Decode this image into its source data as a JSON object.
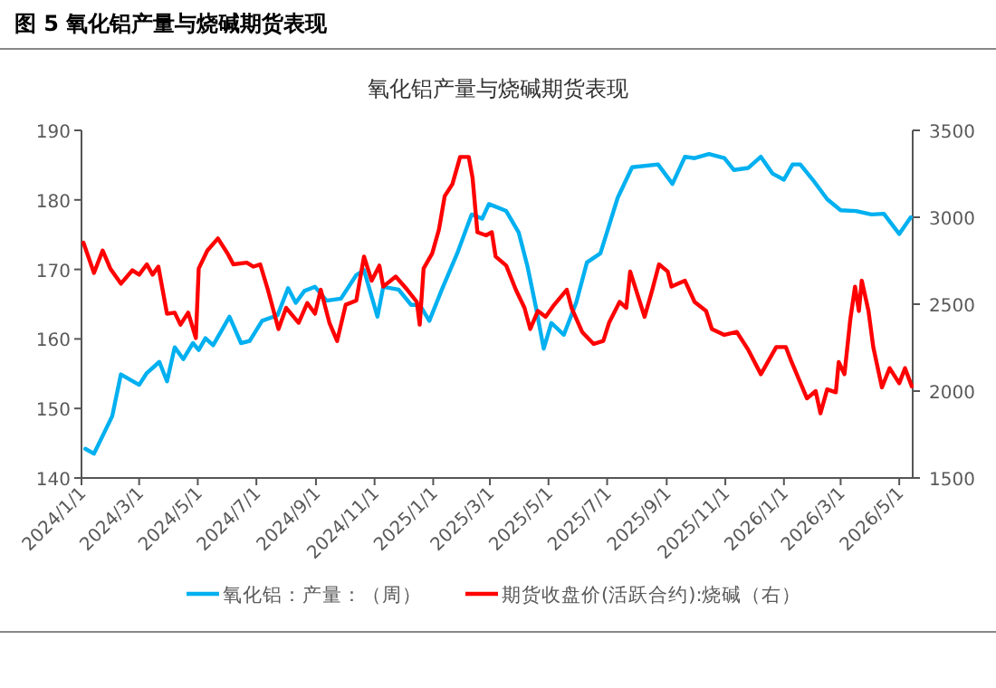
{
  "chart_data": {
    "type": "line",
    "title": "图 5  氧化铝产量与烧碱期货表现",
    "subtitle": "氧化铝产量与烧碱期货表现",
    "xlim": [
      "2024-01-01",
      "2026-05-15"
    ],
    "xticks": [
      {
        "value": "2024-01-01",
        "label": "2024/1/1"
      },
      {
        "value": "2024-03-01",
        "label": "2024/3/1"
      },
      {
        "value": "2024-05-01",
        "label": "2024/5/1"
      },
      {
        "value": "2024-07-01",
        "label": "2024/7/1"
      },
      {
        "value": "2024-09-01",
        "label": "2024/9/1"
      },
      {
        "value": "2024-11-01",
        "label": "2024/11/1"
      },
      {
        "value": "2025-01-01",
        "label": "2025/1/1"
      },
      {
        "value": "2025-03-01",
        "label": "2025/3/1"
      },
      {
        "value": "2025-05-01",
        "label": "2025/5/1"
      },
      {
        "value": "2025-07-01",
        "label": "2025/7/1"
      },
      {
        "value": "2025-09-01",
        "label": "2025/9/1"
      },
      {
        "value": "2025-11-01",
        "label": "2025/11/1"
      },
      {
        "value": "2026-01-01",
        "label": "2026/1/1"
      },
      {
        "value": "2026-03-01",
        "label": "2026/3/1"
      },
      {
        "value": "2026-05-01",
        "label": "2026/5/1"
      }
    ],
    "ylim": [
      140,
      190
    ],
    "yticks": [
      140,
      150,
      160,
      170,
      180,
      190
    ],
    "y2lim": [
      1500,
      3500
    ],
    "y2ticks": [
      1500,
      2000,
      2500,
      3000,
      3500
    ],
    "grid": false,
    "legend": "bottom",
    "marker": "none",
    "line_style": "solid",
    "series": [
      {
        "name": "氧化铝：产量：（周）",
        "color": "#00b0f0",
        "x": [
          "2024-01-05",
          "2024-01-14",
          "2024-02-02",
          "2024-02-11",
          "2024-03-01",
          "2024-03-09",
          "2024-03-22",
          "2024-03-30",
          "2024-04-07",
          "2024-04-16",
          "2024-04-26",
          "2024-05-02",
          "2024-05-09",
          "2024-05-17",
          "2024-06-03",
          "2024-06-15",
          "2024-06-24",
          "2024-07-07",
          "2024-07-23",
          "2024-08-03",
          "2024-08-11",
          "2024-08-20",
          "2024-08-31",
          "2024-09-12",
          "2024-09-27",
          "2024-10-13",
          "2024-10-21",
          "2024-11-04",
          "2024-11-10",
          "2024-11-26",
          "2024-12-09",
          "2024-12-18",
          "2024-12-28",
          "2025-01-10",
          "2025-01-26",
          "2025-02-10",
          "2025-02-21",
          "2025-02-28",
          "2025-03-18",
          "2025-03-31",
          "2025-04-09",
          "2025-04-18",
          "2025-04-26",
          "2025-05-04",
          "2025-05-17",
          "2025-05-30",
          "2025-06-10",
          "2025-06-24",
          "2025-07-12",
          "2025-07-27",
          "2025-08-23",
          "2025-09-07",
          "2025-09-20",
          "2025-09-30",
          "2025-10-15",
          "2025-10-31",
          "2025-11-10",
          "2025-11-25",
          "2025-12-08",
          "2025-12-20",
          "2026-01-01",
          "2026-01-10",
          "2026-01-18",
          "2026-01-31",
          "2026-02-15",
          "2026-03-01",
          "2026-03-17",
          "2026-04-02",
          "2026-04-15",
          "2026-05-01",
          "2026-05-13"
        ],
        "values": [
          144.2,
          143.5,
          148.9,
          154.9,
          153.4,
          155.1,
          156.7,
          153.9,
          158.8,
          157.1,
          159.4,
          158.4,
          160.1,
          159.1,
          163.2,
          159.4,
          159.7,
          162.6,
          163.4,
          167.3,
          165.2,
          166.9,
          167.5,
          165.5,
          165.8,
          169.2,
          169.9,
          163.2,
          167.5,
          167.1,
          164.9,
          164.9,
          162.6,
          167.1,
          172.3,
          177.9,
          177.3,
          179.4,
          178.4,
          175.3,
          170.5,
          164.5,
          158.6,
          162.3,
          160.6,
          165.3,
          171,
          172.3,
          180.3,
          184.7,
          185.1,
          182.3,
          186.2,
          186,
          186.6,
          186,
          184.3,
          184.6,
          186.2,
          183.8,
          182.9,
          185.1,
          185.1,
          182.9,
          180.1,
          178.5,
          178.4,
          177.9,
          178,
          175.1,
          177.5
        ]
      },
      {
        "name": "期货收盘价(活跃合约):烧碱（右）",
        "color": "#ff0000",
        "axis": "y2",
        "x": [
          "2024-01-03",
          "2024-01-14",
          "2024-01-23",
          "2024-01-31",
          "2024-02-11",
          "2024-02-23",
          "2024-03-01",
          "2024-03-09",
          "2024-03-15",
          "2024-03-21",
          "2024-03-30",
          "2024-04-07",
          "2024-04-13",
          "2024-04-21",
          "2024-04-29",
          "2024-05-02",
          "2024-05-11",
          "2024-05-22",
          "2024-06-01",
          "2024-06-07",
          "2024-06-21",
          "2024-06-28",
          "2024-07-05",
          "2024-07-13",
          "2024-07-24",
          "2024-08-01",
          "2024-08-14",
          "2024-08-23",
          "2024-08-31",
          "2024-09-06",
          "2024-09-15",
          "2024-09-23",
          "2024-10-02",
          "2024-10-13",
          "2024-10-21",
          "2024-10-29",
          "2024-11-06",
          "2024-11-10",
          "2024-11-23",
          "2024-12-05",
          "2024-12-15",
          "2024-12-18",
          "2024-12-22",
          "2024-12-31",
          "2025-01-07",
          "2025-01-13",
          "2025-01-21",
          "2025-01-29",
          "2025-02-07",
          "2025-02-11",
          "2025-02-16",
          "2025-02-25",
          "2025-03-03",
          "2025-03-07",
          "2025-03-18",
          "2025-03-28",
          "2025-04-06",
          "2025-04-12",
          "2025-04-20",
          "2025-04-28",
          "2025-05-07",
          "2025-05-20",
          "2025-05-25",
          "2025-06-05",
          "2025-06-17",
          "2025-06-27",
          "2025-07-03",
          "2025-07-14",
          "2025-07-21",
          "2025-07-25",
          "2025-08-09",
          "2025-08-17",
          "2025-08-24",
          "2025-09-02",
          "2025-09-06",
          "2025-09-20",
          "2025-09-30",
          "2025-10-12",
          "2025-10-18",
          "2025-10-31",
          "2025-11-13",
          "2025-11-25",
          "2025-12-08",
          "2025-12-24",
          "2026-01-03",
          "2026-01-09",
          "2026-01-25",
          "2026-02-03",
          "2026-02-08",
          "2026-02-15",
          "2026-02-24",
          "2026-02-27",
          "2026-03-05",
          "2026-03-11",
          "2026-03-16",
          "2026-03-20",
          "2026-03-23",
          "2026-03-30",
          "2026-04-04",
          "2026-04-13",
          "2026-04-21",
          "2026-05-01",
          "2026-05-07",
          "2026-05-14"
        ],
        "values": [
          2854,
          2680,
          2809,
          2705,
          2618,
          2695,
          2670,
          2729,
          2670,
          2716,
          2445,
          2451,
          2382,
          2451,
          2305,
          2705,
          2809,
          2878,
          2792,
          2729,
          2739,
          2716,
          2729,
          2583,
          2357,
          2479,
          2393,
          2507,
          2445,
          2583,
          2393,
          2288,
          2497,
          2521,
          2774,
          2635,
          2722,
          2601,
          2659,
          2583,
          2513,
          2382,
          2705,
          2792,
          2930,
          3122,
          3191,
          3347,
          3347,
          3226,
          2914,
          2896,
          2914,
          2774,
          2722,
          2583,
          2479,
          2357,
          2461,
          2427,
          2497,
          2583,
          2479,
          2340,
          2271,
          2288,
          2393,
          2513,
          2479,
          2688,
          2427,
          2583,
          2729,
          2688,
          2601,
          2635,
          2513,
          2461,
          2357,
          2323,
          2340,
          2236,
          2097,
          2253,
          2253,
          2167,
          1958,
          2000,
          1872,
          2010,
          1993,
          2167,
          2097,
          2409,
          2601,
          2461,
          2635,
          2461,
          2253,
          2021,
          2132,
          2045,
          2132,
          2028
        ]
      }
    ]
  }
}
